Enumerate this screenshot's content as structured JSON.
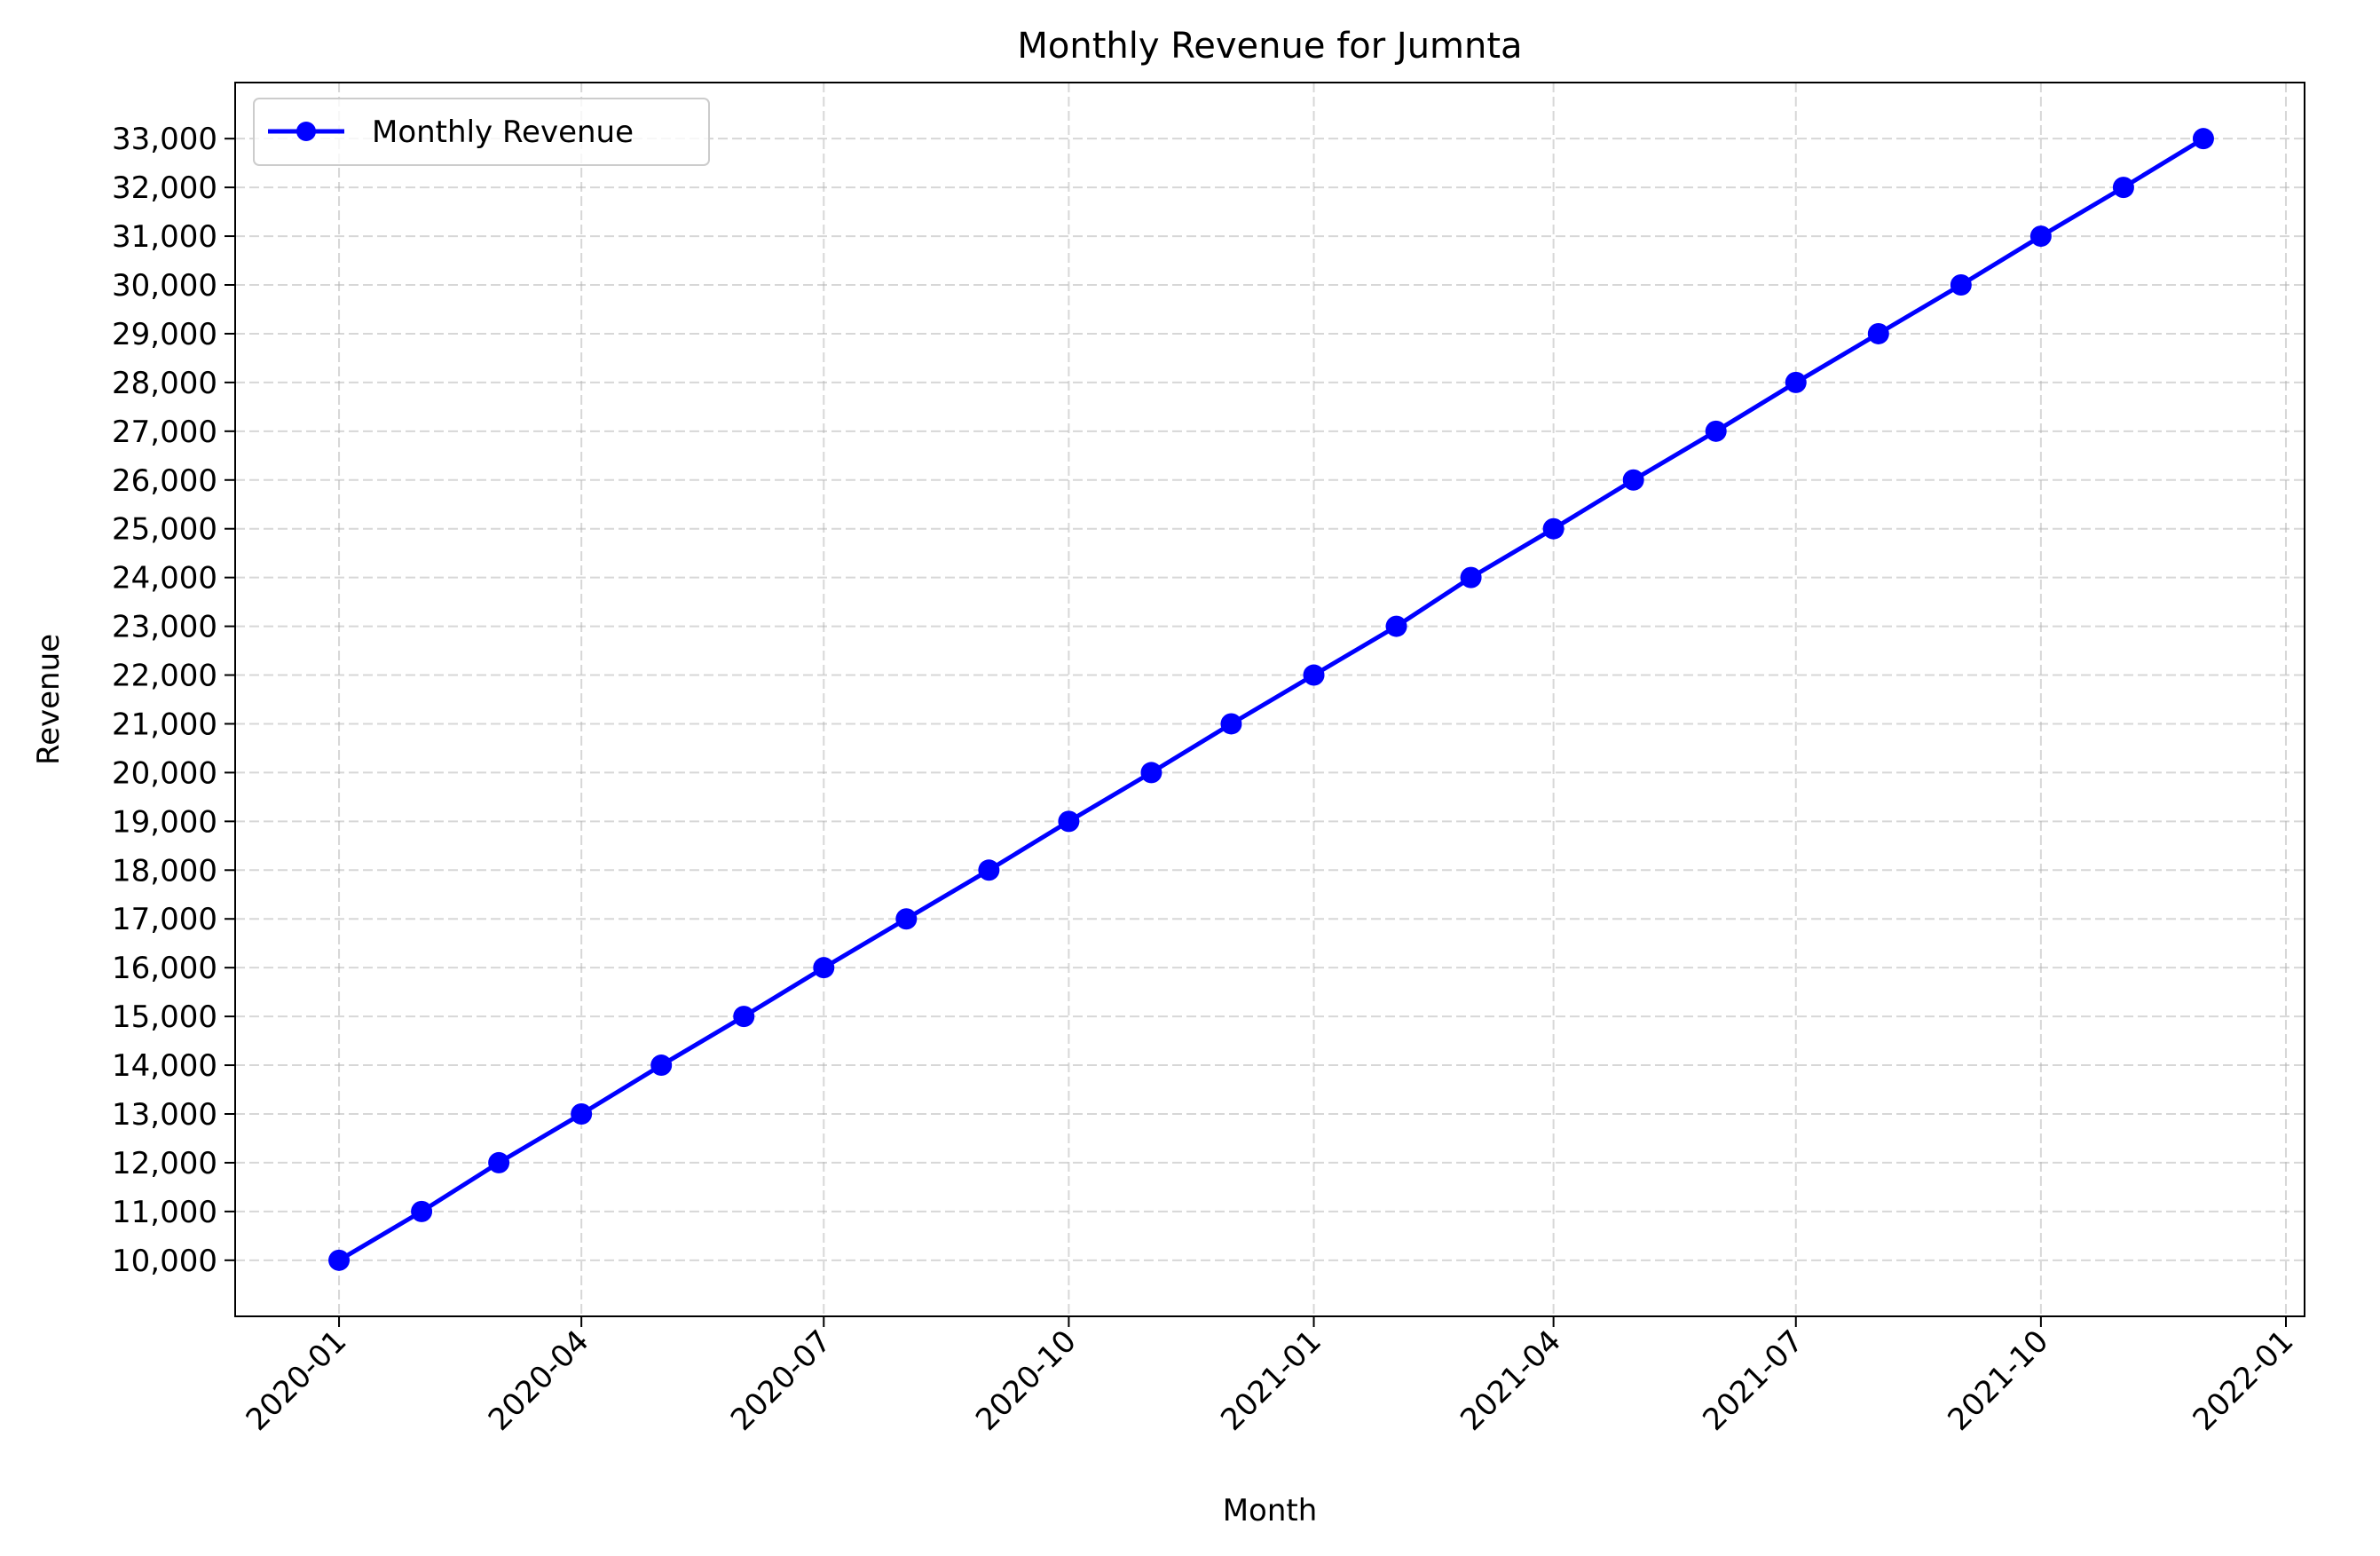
{
  "chart_data": {
    "type": "line",
    "title": "Monthly Revenue for Jumnta",
    "xlabel": "Month",
    "ylabel": "Revenue",
    "x": [
      "2020-01",
      "2020-02",
      "2020-03",
      "2020-04",
      "2020-05",
      "2020-06",
      "2020-07",
      "2020-08",
      "2020-09",
      "2020-10",
      "2020-11",
      "2020-12",
      "2021-01",
      "2021-02",
      "2021-03",
      "2021-04",
      "2021-05",
      "2021-06",
      "2021-07",
      "2021-08",
      "2021-09",
      "2021-10",
      "2021-11",
      "2021-12"
    ],
    "series": [
      {
        "name": "Monthly Revenue",
        "color": "#0000ff",
        "marker": "circle",
        "values": [
          10000,
          11000,
          12000,
          13000,
          14000,
          15000,
          16000,
          17000,
          18000,
          19000,
          20000,
          21000,
          22000,
          23000,
          24000,
          25000,
          26000,
          27000,
          28000,
          29000,
          30000,
          31000,
          32000,
          33000
        ]
      }
    ],
    "x_ticks": [
      "2020-01",
      "2020-04",
      "2020-07",
      "2020-10",
      "2021-01",
      "2021-04",
      "2021-07",
      "2021-10",
      "2022-01"
    ],
    "y_ticks": [
      10000,
      11000,
      12000,
      13000,
      14000,
      15000,
      16000,
      17000,
      18000,
      19000,
      20000,
      21000,
      22000,
      23000,
      24000,
      25000,
      26000,
      27000,
      28000,
      29000,
      30000,
      31000,
      32000,
      33000
    ],
    "y_tick_labels": [
      "10,000",
      "11,000",
      "12,000",
      "13,000",
      "14,000",
      "15,000",
      "16,000",
      "17,000",
      "18,000",
      "19,000",
      "20,000",
      "21,000",
      "22,000",
      "23,000",
      "24,000",
      "25,000",
      "26,000",
      "27,000",
      "28,000",
      "29,000",
      "30,000",
      "31,000",
      "32,000",
      "33,000"
    ],
    "xlim": [
      "2019-11-23",
      "2022-01-08"
    ],
    "ylim": [
      8850,
      34150
    ],
    "grid": true,
    "grid_style": "dashed",
    "legend_position": "top-left"
  }
}
